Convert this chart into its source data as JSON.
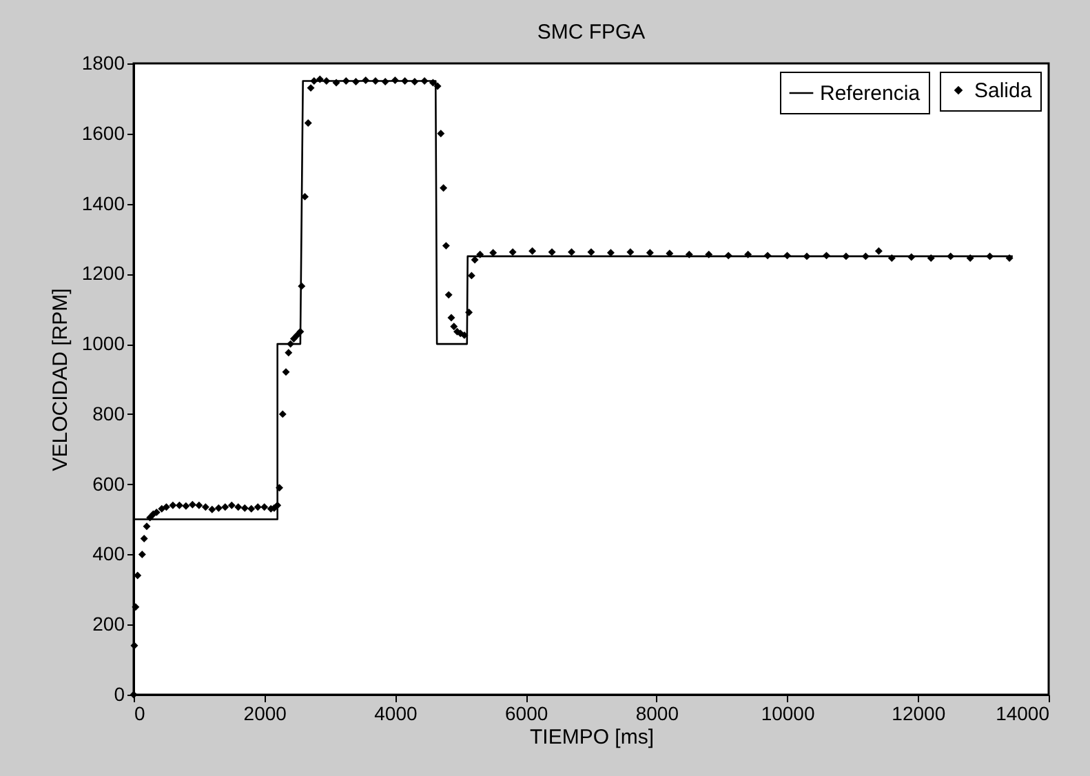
{
  "chart_data": {
    "type": "line",
    "title": "SMC FPGA",
    "xlabel": "TIEMPO [ms]",
    "ylabel": "VELOCIDAD [RPM]",
    "xlim": [
      0,
      14000
    ],
    "xticks": [
      0,
      2000,
      4000,
      6000,
      8000,
      10000,
      12000,
      14000
    ],
    "ylim": [
      0,
      1800
    ],
    "yticks": [
      0,
      200,
      400,
      600,
      800,
      1000,
      1200,
      1400,
      1600,
      1800
    ],
    "grid": false,
    "legend": "top right",
    "series": [
      {
        "name": "Referencia",
        "color": "#000000",
        "line_style": "solid",
        "marker": "none",
        "x": [
          0,
          2200,
          2200,
          2550,
          2590,
          4620,
          4640,
          5100,
          5110,
          13450
        ],
        "values": [
          500,
          500,
          1000,
          1000,
          1750,
          1750,
          1000,
          1000,
          1250,
          1250
        ]
      },
      {
        "name": "Salida",
        "type": "scatter",
        "color": "#000000",
        "marker": "diamond",
        "x": [
          0,
          10,
          30,
          60,
          130,
          160,
          200,
          250,
          300,
          350,
          430,
          500,
          600,
          700,
          800,
          900,
          1000,
          1100,
          1200,
          1300,
          1400,
          1500,
          1600,
          1700,
          1800,
          1900,
          2000,
          2100,
          2150,
          2200,
          2230,
          2280,
          2330,
          2370,
          2400,
          2450,
          2500,
          2550,
          2570,
          2620,
          2670,
          2710,
          2760,
          2850,
          2950,
          3100,
          3250,
          3400,
          3550,
          3700,
          3850,
          4000,
          4150,
          4300,
          4450,
          4580,
          4650,
          4700,
          4740,
          4780,
          4820,
          4860,
          4900,
          4950,
          5000,
          5060,
          5130,
          5170,
          5220,
          5300,
          5500,
          5800,
          6100,
          6400,
          6700,
          7000,
          7300,
          7600,
          7900,
          8200,
          8500,
          8800,
          9100,
          9400,
          9700,
          10000,
          10300,
          10600,
          10900,
          11200,
          11400,
          11600,
          11900,
          12200,
          12500,
          12800,
          13100,
          13400
        ],
        "values": [
          0,
          140,
          250,
          340,
          400,
          445,
          480,
          505,
          515,
          520,
          530,
          535,
          540,
          540,
          538,
          542,
          540,
          535,
          528,
          532,
          535,
          540,
          535,
          532,
          530,
          535,
          535,
          530,
          532,
          540,
          590,
          800,
          920,
          975,
          1000,
          1015,
          1025,
          1035,
          1165,
          1420,
          1630,
          1730,
          1750,
          1755,
          1750,
          1745,
          1750,
          1748,
          1752,
          1750,
          1748,
          1752,
          1750,
          1748,
          1750,
          1745,
          1735,
          1600,
          1445,
          1280,
          1140,
          1075,
          1050,
          1035,
          1030,
          1025,
          1090,
          1195,
          1240,
          1255,
          1260,
          1262,
          1265,
          1262,
          1262,
          1262,
          1260,
          1262,
          1260,
          1258,
          1255,
          1255,
          1252,
          1255,
          1252,
          1252,
          1250,
          1252,
          1250,
          1250,
          1265,
          1245,
          1248,
          1245,
          1250,
          1245,
          1250,
          1245
        ]
      }
    ]
  }
}
